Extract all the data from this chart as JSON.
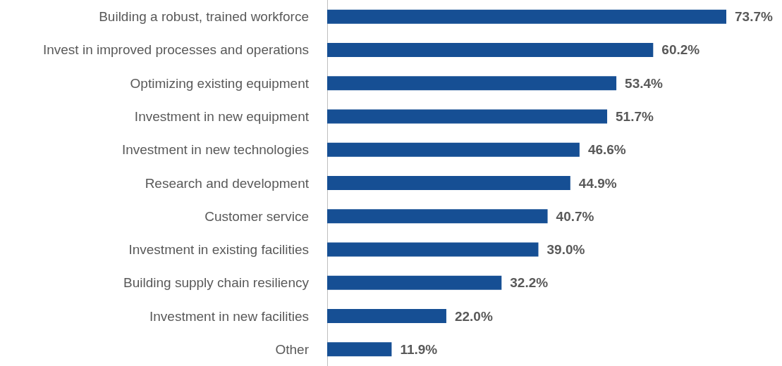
{
  "chart_data": {
    "type": "bar",
    "orientation": "horizontal",
    "color": "#164f94",
    "categories": [
      "Building a robust, trained workforce",
      "Invest in improved processes and operations",
      "Optimizing existing equipment",
      "Investment in new equipment",
      "Investment in new technologies",
      "Research and development",
      "Customer service",
      "Investment in existing facilities",
      "Building supply chain resiliency",
      "Investment in new facilities",
      "Other"
    ],
    "values": [
      73.7,
      60.2,
      53.4,
      51.7,
      46.6,
      44.9,
      40.7,
      39.0,
      32.2,
      22.0,
      11.9
    ],
    "value_labels": [
      "73.7%",
      "60.2%",
      "53.4%",
      "51.7%",
      "46.6%",
      "44.9%",
      "40.7%",
      "39.0%",
      "32.2%",
      "22.0%",
      "11.9%"
    ]
  }
}
